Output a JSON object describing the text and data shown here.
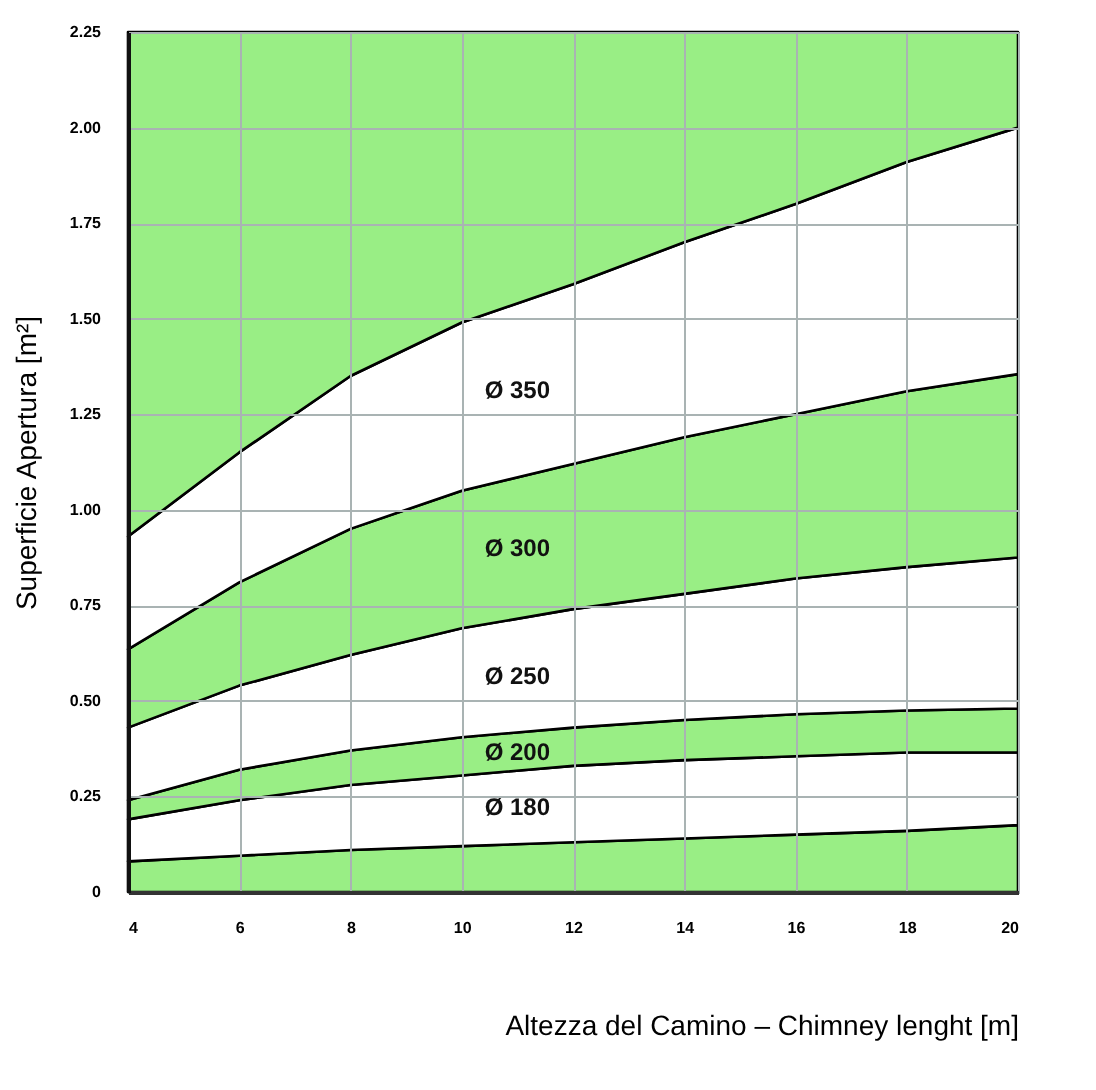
{
  "chart_data": {
    "type": "area",
    "xlabel": "Altezza del Camino – Chimney lenght [m]",
    "ylabel": "Superficie Apertura [m²]",
    "x": [
      4,
      6,
      8,
      10,
      12,
      14,
      16,
      18,
      20
    ],
    "stacked": true,
    "series": [
      {
        "type": "area",
        "color": "#99ee85",
        "values": [
          0.08,
          0.095,
          0.11,
          0.12,
          0.13,
          0.14,
          0.15,
          0.16,
          0.175
        ]
      },
      {
        "type": "area",
        "color": "#ffffff",
        "values": [
          0.11,
          0.145,
          0.17,
          0.185,
          0.2,
          0.205,
          0.205,
          0.205,
          0.19
        ]
      },
      {
        "type": "area",
        "color": "#99ee85",
        "values": [
          0.05,
          0.08,
          0.09,
          0.1,
          0.1,
          0.105,
          0.11,
          0.11,
          0.115
        ]
      },
      {
        "type": "area",
        "color": "#ffffff",
        "values": [
          0.19,
          0.22,
          0.25,
          0.285,
          0.31,
          0.33,
          0.355,
          0.375,
          0.395
        ]
      },
      {
        "type": "area",
        "color": "#99ee85",
        "values": [
          0.205,
          0.27,
          0.33,
          0.36,
          0.38,
          0.41,
          0.43,
          0.46,
          0.48
        ]
      },
      {
        "type": "area",
        "color": "#ffffff",
        "values": [
          0.295,
          0.34,
          0.4,
          0.44,
          0.47,
          0.51,
          0.55,
          0.6,
          0.645
        ]
      },
      {
        "type": "area",
        "color": "#99ee85",
        "values": [
          1.32,
          1.1,
          0.9,
          0.76,
          0.66,
          0.55,
          0.45,
          0.34,
          0.25
        ]
      }
    ],
    "annotations": [
      "Ø 350",
      "Ø 300",
      "Ø 250",
      "Ø 200",
      "Ø 180"
    ],
    "xlim": [
      4,
      20
    ],
    "ylim": [
      0,
      2.25
    ],
    "xticks": [
      4,
      6,
      8,
      10,
      12,
      14,
      16,
      18,
      20
    ],
    "yticks": [
      0,
      0.25,
      {
        "value": 0.5,
        "label": "0.50"
      },
      0.75,
      {
        "value": 1,
        "label": "1.00"
      },
      1.25,
      {
        "value": 1.5,
        "label": "1.50"
      },
      1.75,
      {
        "value": 2,
        "label": "2.00"
      },
      2.25
    ],
    "grid": true,
    "line_style": "solid"
  }
}
